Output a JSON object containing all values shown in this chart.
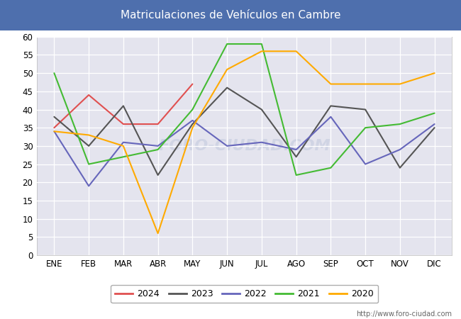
{
  "title": "Matriculaciones de Vehículos en Cambre",
  "title_bg_color": "#4e6fad",
  "title_text_color": "#ffffff",
  "ylim": [
    0,
    60
  ],
  "yticks": [
    0,
    5,
    10,
    15,
    20,
    25,
    30,
    35,
    40,
    45,
    50,
    55,
    60
  ],
  "months": [
    "ENE",
    "FEB",
    "MAR",
    "ABR",
    "MAY",
    "JUN",
    "JUL",
    "AGO",
    "SEP",
    "OCT",
    "NOV",
    "DIC"
  ],
  "series": {
    "2024": {
      "color": "#e05050",
      "values": [
        35,
        44,
        36,
        36,
        47,
        null,
        null,
        null,
        null,
        null,
        null,
        null
      ]
    },
    "2023": {
      "color": "#555555",
      "values": [
        38,
        30,
        41,
        22,
        36,
        46,
        40,
        27,
        41,
        40,
        24,
        35
      ]
    },
    "2022": {
      "color": "#6666bb",
      "values": [
        34,
        19,
        31,
        30,
        37,
        30,
        31,
        29,
        38,
        25,
        29,
        36
      ]
    },
    "2021": {
      "color": "#44bb33",
      "values": [
        50,
        25,
        27,
        29,
        40,
        58,
        58,
        22,
        24,
        35,
        36,
        39
      ]
    },
    "2020": {
      "color": "#ffaa00",
      "values": [
        34,
        33,
        30,
        6,
        35,
        51,
        56,
        56,
        47,
        47,
        47,
        50
      ]
    }
  },
  "watermark": "FORO-CIUDAD.COM",
  "url": "http://www.foro-ciudad.com",
  "plot_bg_color": "#e4e4ee",
  "grid_color": "#ffffff",
  "fig_bg_color": "#ffffff",
  "legend_order": [
    "2024",
    "2023",
    "2022",
    "2021",
    "2020"
  ]
}
